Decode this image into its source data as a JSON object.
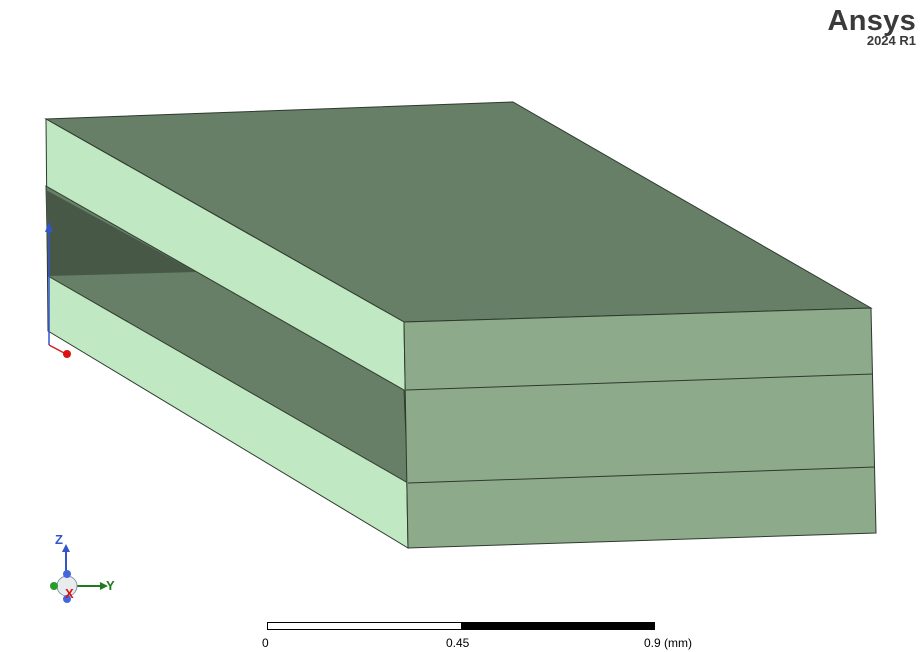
{
  "brand": {
    "name": "Ansys",
    "version": "2024 R1"
  },
  "triad": {
    "z_label": "Z",
    "x_label": "X",
    "y_label": "Y"
  },
  "scale": {
    "left": "0",
    "mid": "0.45",
    "right": "0.9 (mm)"
  },
  "colors": {
    "top_face": "#667f66",
    "front_face": "#8daa8a",
    "side_face": "#c0e8c2",
    "inner_shadow": "#475847",
    "edge": "#2e3a2e"
  }
}
